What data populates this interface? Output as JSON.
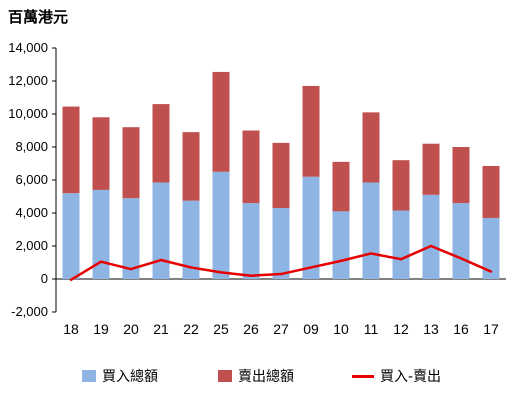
{
  "chart_data": {
    "type": "bar",
    "title": "",
    "unit_label": "百萬港元",
    "categories": [
      "18",
      "19",
      "20",
      "21",
      "22",
      "25",
      "26",
      "27",
      "09",
      "10",
      "11",
      "12",
      "13",
      "16",
      "17"
    ],
    "series": [
      {
        "name": "買入總額",
        "kind": "stacked_bar",
        "color": "#8DB4E2",
        "values": [
          5200,
          5400,
          4900,
          5850,
          4750,
          6500,
          4600,
          4300,
          6200,
          4100,
          5850,
          4150,
          5100,
          4600,
          3700
        ]
      },
      {
        "name": "賣出總額",
        "kind": "stacked_bar",
        "color": "#C0504D",
        "values": [
          5250,
          4400,
          4300,
          4750,
          4150,
          6050,
          4400,
          3950,
          5500,
          3000,
          4250,
          3050,
          3100,
          3400,
          3150
        ]
      },
      {
        "name": "買入-賣出",
        "kind": "line",
        "color": "#E60000",
        "values": [
          -50,
          1050,
          600,
          1150,
          700,
          400,
          200,
          300,
          700,
          1100,
          1550,
          1200,
          2000,
          1250,
          450
        ]
      }
    ],
    "ylim": [
      -2000,
      14000
    ],
    "yticks": [
      "-2,000",
      "0",
      "2,000",
      "4,000",
      "6,000",
      "8,000",
      "10,000",
      "12,000",
      "14,000"
    ],
    "grid": false,
    "legend_position": "bottom"
  }
}
